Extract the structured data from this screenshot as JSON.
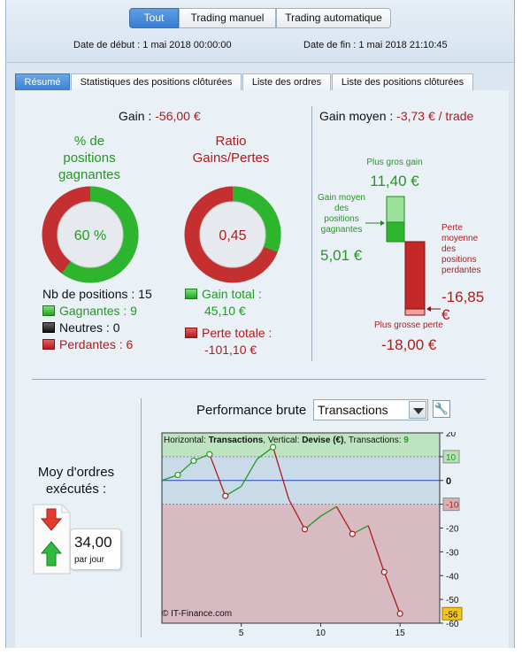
{
  "top_nav": {
    "segments": [
      "Tout",
      "Trading manuel",
      "Trading automatique"
    ],
    "active": 0,
    "start_date_label": "Date de début : 1 mai 2018 00:00:00",
    "end_date_label": "Date de fin : 1 mai 2018 21:10:45"
  },
  "tabs": {
    "items": [
      "Résumé",
      "Statistiques des positions clôturées",
      "Liste des ordres",
      "Liste des positions clôturées"
    ],
    "active": 0
  },
  "summary": {
    "gain_label": "Gain :",
    "gain_value": "-56,00 €",
    "winrate_title": "% de positions gagnantes",
    "winrate_value": "60 %",
    "winrate_fraction": 0.6,
    "ratio_title": "Ratio Gains/Pertes",
    "ratio_value": "0,45",
    "ratio_fraction": 0.309,
    "positions_count_label": "Nb de positions : 15",
    "winning_label": "Gagnantes : 9",
    "neutral_label": "Neutres : 0",
    "losing_label": "Perdantes : 6",
    "total_gain_label": "Gain total :",
    "total_gain_value": "45,10 €",
    "total_loss_label": "Perte totale :",
    "total_loss_value": "-101,10 €"
  },
  "avg_gain": {
    "label": "Gain moyen :",
    "value": "-3,73 € / trade",
    "max_gain_label": "Plus gros gain",
    "max_gain_value": "11,40 €",
    "avg_winning_label": "Gain moyen des positions gagnantes",
    "avg_winning_value": "5,01 €",
    "avg_losing_label": "Perte moyenne des positions perdantes",
    "avg_losing_value": "-16,85 €",
    "max_loss_label": "Plus grosse perte",
    "max_loss_value": "-18,00 €"
  },
  "orders": {
    "title": "Moy d'ordres exécutés :",
    "value": "34,00",
    "unit": "par jour"
  },
  "performance": {
    "title": "Performance brute",
    "select_value": "Transactions",
    "info_prefix": "Horizontal: ",
    "info_h": "Transactions",
    "info_mid": ", Vertical: ",
    "info_v": "Devise (€)",
    "info_suffix": ", Transactions: ",
    "info_n": "9",
    "copyright": "© IT-Finance.com",
    "colors": {
      "gain": "#229a22",
      "loss": "#b01c1c",
      "zero": "#2846b8"
    }
  },
  "chart_data": {
    "type": "line",
    "x": [
      0,
      1,
      2,
      3,
      4,
      5,
      6,
      7,
      8,
      9,
      10,
      11,
      12,
      13,
      14,
      15
    ],
    "y": [
      0,
      2.3,
      8.3,
      11,
      -6.5,
      -2.5,
      9,
      14,
      -8,
      -20.5,
      -15,
      -11,
      -22.5,
      -19,
      -38.5,
      -56
    ],
    "markers": [
      1,
      2,
      3,
      4,
      7,
      9,
      12,
      14,
      15
    ],
    "x_ticks": [
      5,
      10,
      15
    ],
    "y_ticks": [
      20,
      10,
      0,
      -10,
      -20,
      -30,
      -40,
      -50,
      -60
    ],
    "y_tick_labels": [
      "20",
      "10",
      "0",
      "-10",
      "-20",
      "-30",
      "-40",
      "-50",
      "-60"
    ],
    "xlim": [
      0,
      17.5
    ],
    "ylim": [
      -60,
      20
    ],
    "gain_band": [
      10,
      20
    ],
    "loss_band": [
      -60,
      -10
    ],
    "current_value_label": "-56"
  }
}
